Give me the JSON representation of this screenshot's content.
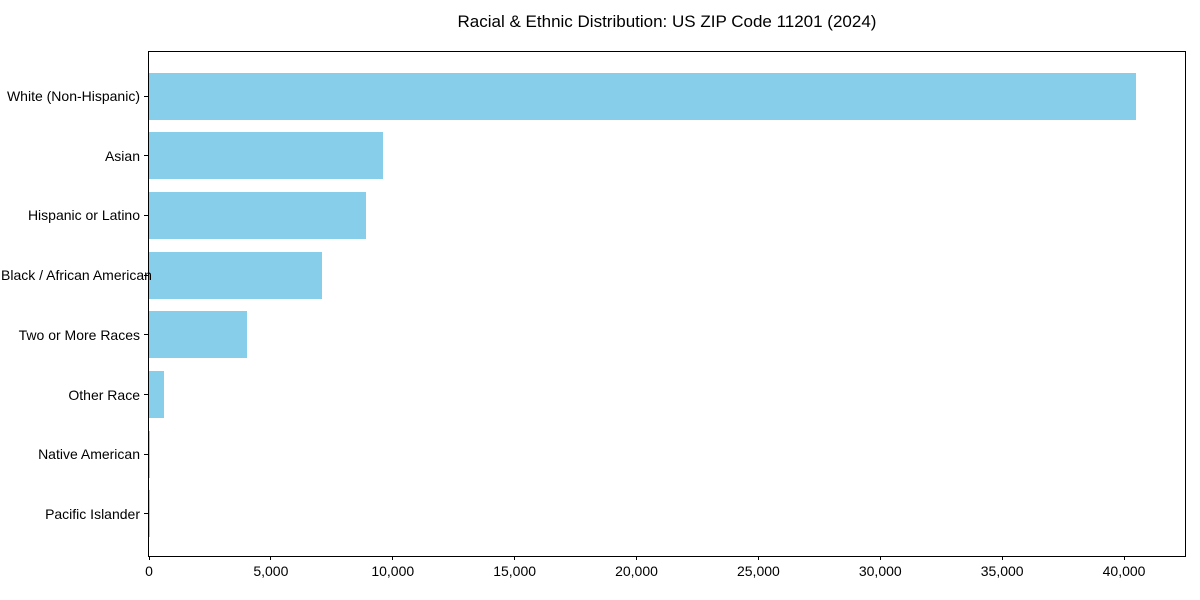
{
  "title": "Racial & Ethnic Distribution: US ZIP Code 11201 (2024)",
  "colors": {
    "background": "#ffffff",
    "axis": "#000000",
    "text": "#000000",
    "bar": "#87CEEB"
  },
  "chart_data": {
    "type": "bar",
    "orientation": "horizontal",
    "title": "Racial & Ethnic Distribution: US ZIP Code 11201 (2024)",
    "categories": [
      "White (Non-Hispanic)",
      "Asian",
      "Hispanic or Latino",
      "Black / African American",
      "Two or More Races",
      "Other Race",
      "Native American",
      "Pacific Islander"
    ],
    "values": [
      40500,
      9600,
      8900,
      7100,
      4000,
      600,
      60,
      15
    ],
    "xlabel": "",
    "ylabel": "",
    "xlim": [
      0,
      42500
    ],
    "xticks": [
      0,
      5000,
      10000,
      15000,
      20000,
      25000,
      30000,
      35000,
      40000
    ],
    "xtick_labels": [
      "0",
      "5,000",
      "10,000",
      "15,000",
      "20,000",
      "25,000",
      "30,000",
      "35,000",
      "40,000"
    ],
    "grid": false,
    "legend": null,
    "bar_color": "#87CEEB"
  }
}
